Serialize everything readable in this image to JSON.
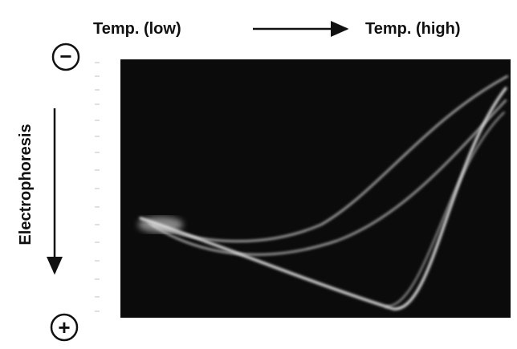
{
  "header": {
    "low": "Temp. (low)",
    "high": "Temp. (high)"
  },
  "axis": {
    "label": "Electrophoresis",
    "top": "−",
    "bottom": "+"
  }
}
